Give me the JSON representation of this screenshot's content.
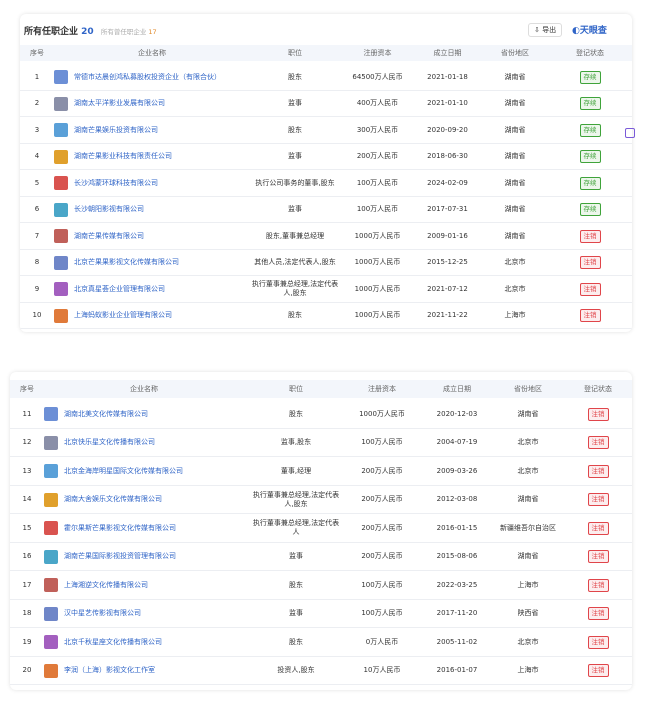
{
  "header": {
    "title": "所有任职企业",
    "count": 20,
    "former_label": "所有曾任职企业",
    "former_count": 17,
    "export": "导出",
    "brand": "天眼查"
  },
  "status_colors": {
    "存续": "#3fa33a",
    "注销": "#e0454a"
  },
  "table1": {
    "columns": [
      "序号",
      "企业名称",
      "职位",
      "注册资本",
      "成立日期",
      "省份地区",
      "登记状态"
    ],
    "rows": [
      [
        1,
        "常德市达晨创鸿私募股权投资企业（有限合伙）",
        "股东",
        "64500万人民币",
        "2021-01-18",
        "湖南省",
        "存续"
      ],
      [
        2,
        "湖南太平洋影业发展有限公司",
        "监事",
        "400万人民币",
        "2021-01-10",
        "湖南省",
        "存续"
      ],
      [
        3,
        "湖南芒果娱乐投资有限公司",
        "股东",
        "300万人民币",
        "2020-09-20",
        "湖南省",
        "存续"
      ],
      [
        4,
        "湖南芒果影业科技有限责任公司",
        "监事",
        "200万人民币",
        "2018-06-30",
        "湖南省",
        "存续"
      ],
      [
        5,
        "长沙鸿蒙环球科技有限公司",
        "执行公司事务的董事,股东",
        "100万人民币",
        "2024-02-09",
        "湖南省",
        "存续"
      ],
      [
        6,
        "长沙朝阳影视有限公司",
        "监事",
        "100万人民币",
        "2017-07-31",
        "湖南省",
        "存续"
      ],
      [
        7,
        "湖南芒果传媒有限公司",
        "股东,董事兼总经理",
        "1000万人民币",
        "2009-01-16",
        "湖南省",
        "注销"
      ],
      [
        8,
        "北京芒果果影视文化传媒有限公司",
        "其他人员,法定代表人,股东",
        "1000万人民币",
        "2015-12-25",
        "北京市",
        "注销"
      ],
      [
        9,
        "北京真星荟企业管理有限公司",
        "执行董事兼总经理,法定代表人,股东",
        "1000万人民币",
        "2021-07-12",
        "北京市",
        "注销"
      ],
      [
        10,
        "上海蚂蚁影业企业管理有限公司",
        "股东",
        "1000万人民币",
        "2021-11-22",
        "上海市",
        "注销"
      ]
    ]
  },
  "table2": {
    "columns": [
      "序号",
      "企业名称",
      "职位",
      "注册资本",
      "成立日期",
      "省份地区",
      "登记状态"
    ],
    "rows": [
      [
        11,
        "湖南北美文化传媒有限公司",
        "股东",
        "1000万人民币",
        "2020-12-03",
        "湖南省",
        "注销"
      ],
      [
        12,
        "北京快乐星文化传播有限公司",
        "监事,股东",
        "100万人民币",
        "2004-07-19",
        "北京市",
        "注销"
      ],
      [
        13,
        "北京金海岸明星国际文化传媒有限公司",
        "董事,经理",
        "200万人民币",
        "2009-03-26",
        "北京市",
        "注销"
      ],
      [
        14,
        "湖南大舍娱乐文化传媒有限公司",
        "执行董事兼总经理,法定代表人,股东",
        "200万人民币",
        "2012-03-08",
        "湖南省",
        "注销"
      ],
      [
        15,
        "霍尔果斯芒果影视文化传媒有限公司",
        "执行董事兼总经理,法定代表人",
        "200万人民币",
        "2016-01-15",
        "新疆维吾尔自治区",
        "注销"
      ],
      [
        16,
        "湖南芒果国际影视投资管理有限公司",
        "监事",
        "200万人民币",
        "2015-08-06",
        "湖南省",
        "注销"
      ],
      [
        17,
        "上海湘逆文化传播有限公司",
        "股东",
        "100万人民币",
        "2022-03-25",
        "上海市",
        "注销"
      ],
      [
        18,
        "汉中星艺传影视有限公司",
        "监事",
        "100万人民币",
        "2017-11-20",
        "陕西省",
        "注销"
      ],
      [
        19,
        "北京千秋星座文化传播有限公司",
        "股东",
        "0万人民币",
        "2005-11-02",
        "北京市",
        "注销"
      ],
      [
        20,
        "李润（上海）影视文化工作室",
        "投资人,股东",
        "10万人民币",
        "2016-01-07",
        "上海市",
        "注销"
      ]
    ]
  }
}
